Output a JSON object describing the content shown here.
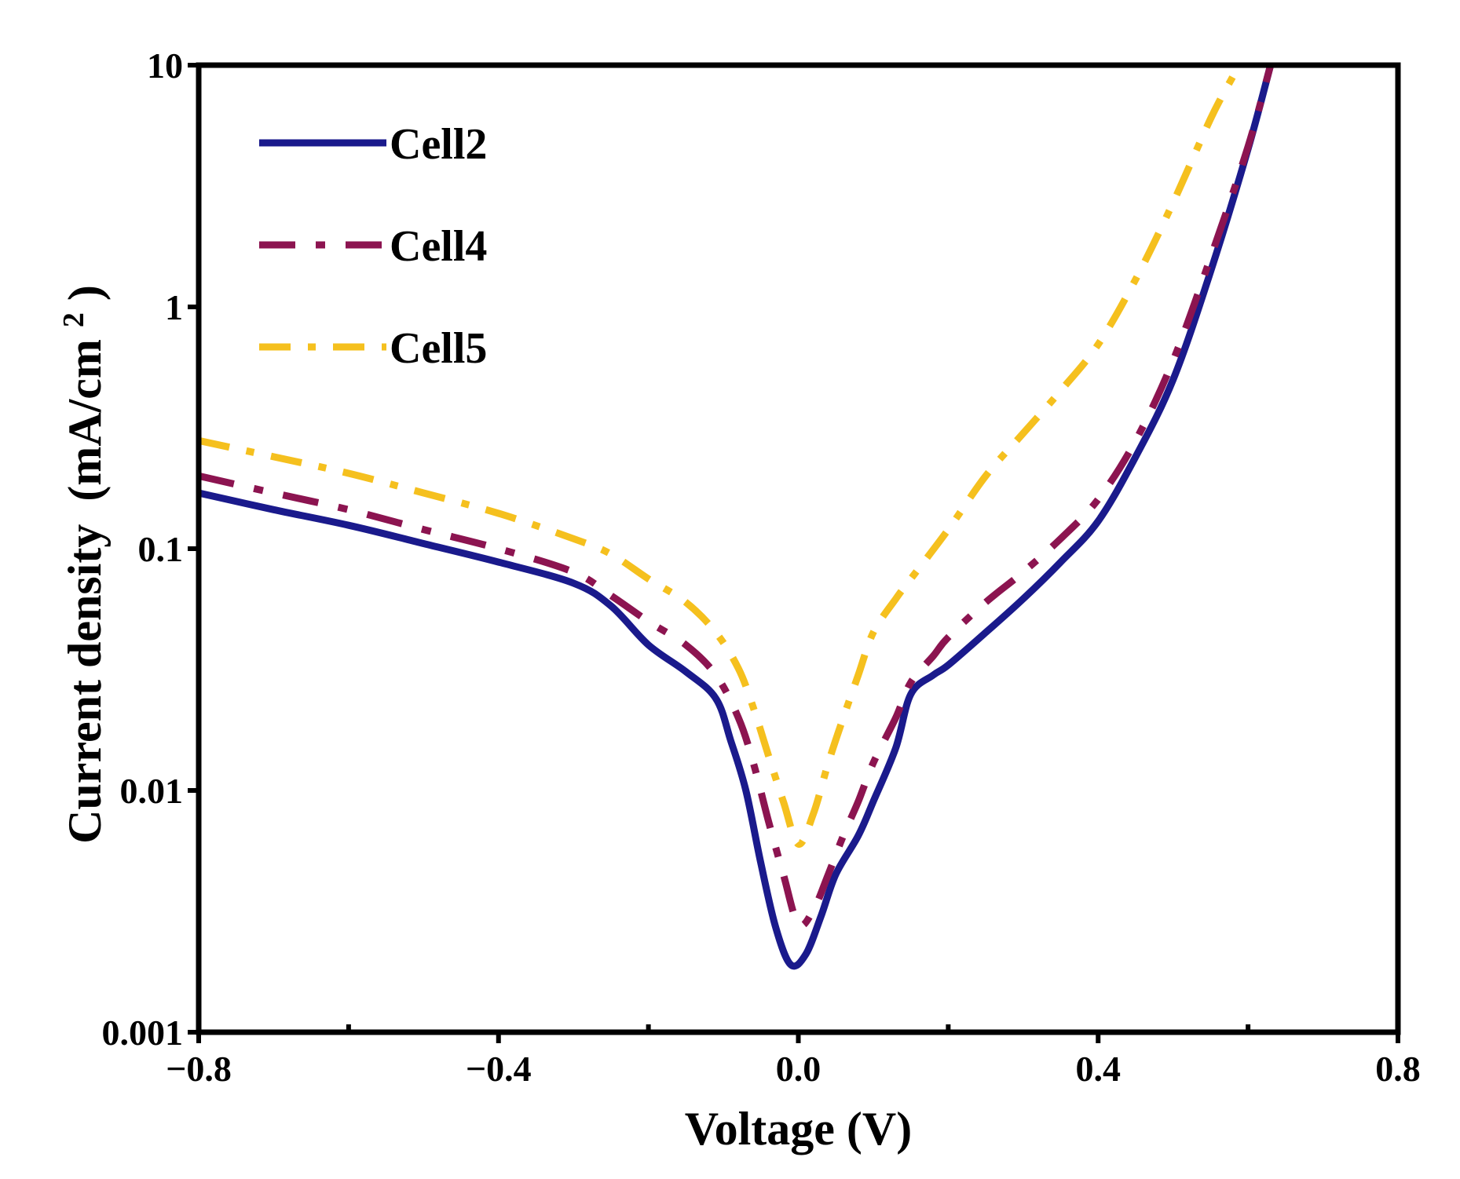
{
  "chart_data": {
    "type": "line",
    "title": "",
    "xlabel": "Voltage (V)",
    "ylabel_main": "Current density",
    "ylabel_unit": "(mA/cm",
    "ylabel_sup": "2",
    "ylabel_close": ")",
    "xscale": "linear",
    "yscale": "log",
    "xlim": [
      -0.8,
      0.8
    ],
    "ylim": [
      0.001,
      10
    ],
    "xticks": [
      -0.8,
      -0.4,
      0.0,
      0.4,
      0.8
    ],
    "xtick_labels": [
      "−0.8",
      "−0.4",
      "0.0",
      "0.4",
      "0.8"
    ],
    "xminor_ticks": [
      -0.6,
      -0.2,
      0.2,
      0.6
    ],
    "yticks": [
      0.001,
      0.01,
      0.1,
      1,
      10
    ],
    "ytick_labels": [
      "0.001",
      "0.01",
      "0.1",
      "1",
      "10"
    ],
    "grid": false,
    "legend_position": "top-left",
    "series": [
      {
        "name": "Cell2",
        "color": "#1a1a8c",
        "style": "solid",
        "x": [
          -0.8,
          -0.7,
          -0.6,
          -0.5,
          -0.4,
          -0.3,
          -0.25,
          -0.2,
          -0.15,
          -0.11,
          -0.09,
          -0.07,
          -0.05,
          -0.03,
          -0.01,
          0.01,
          0.03,
          0.05,
          0.08,
          0.1,
          0.13,
          0.15,
          0.18,
          0.2,
          0.25,
          0.3,
          0.35,
          0.4,
          0.45,
          0.5,
          0.55,
          0.6,
          0.63
        ],
        "y": [
          0.17,
          0.145,
          0.125,
          0.105,
          0.088,
          0.072,
          0.058,
          0.04,
          0.031,
          0.024,
          0.016,
          0.01,
          0.005,
          0.0027,
          0.0019,
          0.0021,
          0.003,
          0.0045,
          0.0065,
          0.009,
          0.015,
          0.025,
          0.03,
          0.033,
          0.045,
          0.062,
          0.088,
          0.13,
          0.24,
          0.5,
          1.4,
          4.5,
          10.0
        ]
      },
      {
        "name": "Cell4",
        "color": "#8c1450",
        "style": "dashed",
        "x": [
          -0.8,
          -0.7,
          -0.6,
          -0.5,
          -0.4,
          -0.3,
          -0.25,
          -0.2,
          -0.15,
          -0.11,
          -0.08,
          -0.06,
          -0.04,
          -0.02,
          0.0,
          0.02,
          0.04,
          0.06,
          0.08,
          0.1,
          0.13,
          0.15,
          0.18,
          0.2,
          0.25,
          0.3,
          0.35,
          0.4,
          0.45,
          0.5,
          0.55,
          0.6,
          0.63
        ],
        "y": [
          0.2,
          0.17,
          0.145,
          0.12,
          0.1,
          0.08,
          0.064,
          0.05,
          0.04,
          0.03,
          0.02,
          0.013,
          0.0075,
          0.0045,
          0.0028,
          0.0032,
          0.0045,
          0.0065,
          0.009,
          0.013,
          0.02,
          0.028,
          0.036,
          0.043,
          0.06,
          0.08,
          0.11,
          0.16,
          0.28,
          0.6,
          1.6,
          4.6,
          10.0
        ]
      },
      {
        "name": "Cell5",
        "color": "#f5c01e",
        "style": "dashdot",
        "x": [
          -0.8,
          -0.7,
          -0.6,
          -0.5,
          -0.4,
          -0.3,
          -0.25,
          -0.2,
          -0.15,
          -0.11,
          -0.08,
          -0.06,
          -0.04,
          -0.02,
          0.0,
          0.02,
          0.04,
          0.06,
          0.08,
          0.1,
          0.13,
          0.15,
          0.2,
          0.25,
          0.3,
          0.35,
          0.4,
          0.45,
          0.5,
          0.55,
          0.58
        ],
        "y": [
          0.28,
          0.24,
          0.205,
          0.17,
          0.14,
          0.11,
          0.095,
          0.075,
          0.06,
          0.045,
          0.032,
          0.022,
          0.014,
          0.009,
          0.006,
          0.008,
          0.013,
          0.02,
          0.03,
          0.045,
          0.062,
          0.075,
          0.12,
          0.2,
          0.3,
          0.45,
          0.7,
          1.3,
          2.7,
          6.0,
          9.0
        ]
      }
    ]
  }
}
